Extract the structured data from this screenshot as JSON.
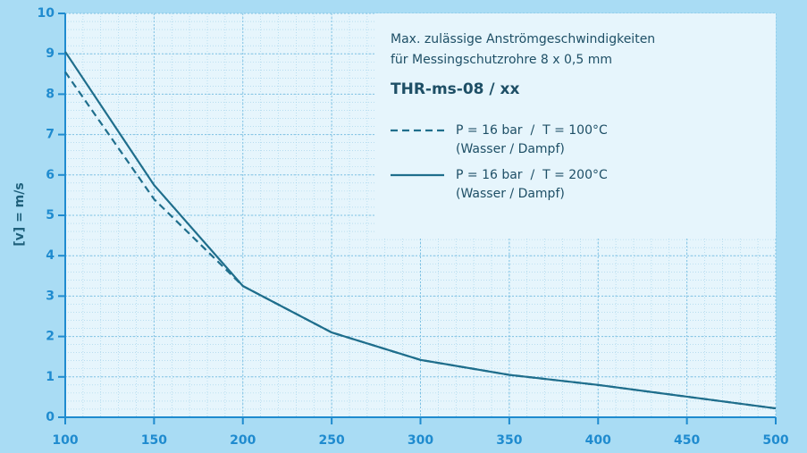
{
  "chart_data": {
    "type": "line",
    "ylabel": "[v] = m/s",
    "legend_title": [
      "Max. zulässige Anströmgeschwindigkeiten",
      "für Messingschutzrohre 8 x 0,5 mm"
    ],
    "legend_heading": "THR-ms-08 / xx",
    "x": [
      100,
      150,
      200,
      250,
      300,
      350,
      400,
      500
    ],
    "series": [
      {
        "name": "P = 16 bar  /  T = 100°C",
        "medium": "(Wasser / Dampf)",
        "color": "#1f6e8c",
        "dash": true,
        "values": [
          8.55,
          5.4,
          3.25,
          2.1,
          1.42,
          1.05,
          0.8,
          0.22
        ]
      },
      {
        "name": "P = 16 bar  /  T = 200°C",
        "medium": "(Wasser / Dampf)",
        "color": "#1f6e8c",
        "dash": false,
        "values": [
          9.05,
          5.75,
          3.25,
          2.1,
          1.42,
          1.05,
          0.8,
          0.22
        ]
      }
    ],
    "xlim": [
      100,
      500
    ],
    "xticks": [
      100,
      150,
      200,
      250,
      300,
      350,
      400,
      450,
      500
    ],
    "ylim": [
      0,
      10
    ],
    "yticks": [
      0,
      1,
      2,
      3,
      4,
      5,
      6,
      7,
      8,
      9,
      10
    ],
    "grid": true
  }
}
